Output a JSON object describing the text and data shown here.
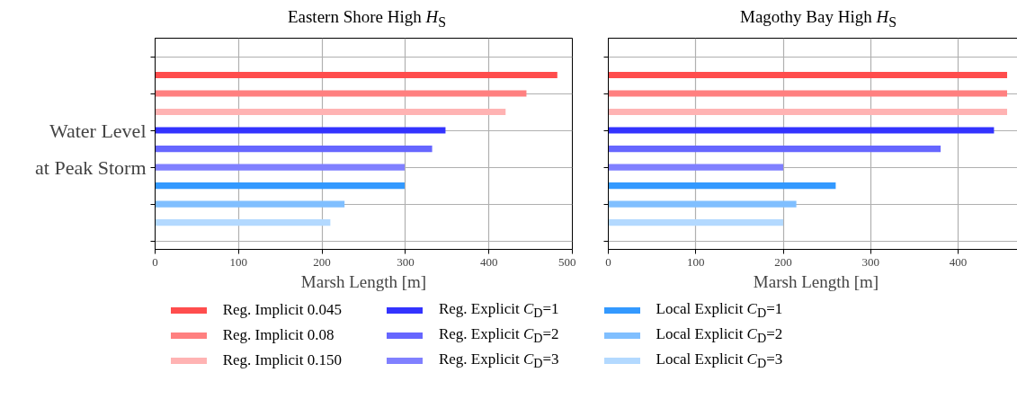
{
  "chart_data": [
    {
      "type": "bar",
      "orientation": "horizontal",
      "title": "Eastern Shore High H$_{S}$",
      "xlabel": "Marsh Length [m]",
      "xlim": [
        0,
        500
      ],
      "xticks": [
        0,
        100,
        200,
        300,
        400,
        500
      ],
      "categories": [
        null,
        null,
        null,
        null,
        "Water Level",
        null,
        "at Peak Storm",
        null,
        null,
        null,
        null
      ],
      "grid": true,
      "legend": "bottom",
      "series": [
        {
          "name": "Reg. Implicit 0.045",
          "color": "#ff4d4d",
          "values": [
            null,
            482,
            null,
            null,
            null,
            null,
            null,
            null,
            null,
            null,
            null
          ]
        },
        {
          "name": "Reg. Implicit 0.08",
          "color": "#ff8080",
          "values": [
            null,
            null,
            445,
            null,
            null,
            null,
            null,
            null,
            null,
            null,
            null
          ]
        },
        {
          "name": "Reg. Implicit 0.150",
          "color": "#ffb3b3",
          "values": [
            null,
            null,
            null,
            420,
            null,
            null,
            null,
            null,
            null,
            null,
            null
          ]
        },
        {
          "name": "Reg. Explicit C$_{D}$=1",
          "color": "#3333ff",
          "values": [
            null,
            null,
            null,
            null,
            348,
            null,
            null,
            null,
            null,
            null,
            null
          ]
        },
        {
          "name": "Reg. Explicit C$_{D}$=2",
          "color": "#6666ff",
          "values": [
            null,
            null,
            null,
            null,
            null,
            332,
            null,
            null,
            null,
            null,
            null
          ]
        },
        {
          "name": "Reg. Explicit C$_{D}$=3",
          "color": "#8080ff",
          "values": [
            null,
            null,
            null,
            null,
            null,
            null,
            299,
            null,
            null,
            null,
            null
          ]
        },
        {
          "name": "Local Explicit C$_{D}$=1",
          "color": "#3399ff",
          "values": [
            null,
            null,
            null,
            null,
            null,
            null,
            null,
            299,
            null,
            null,
            null
          ]
        },
        {
          "name": "Local Explicit C$_{D}$=2",
          "color": "#80bfff",
          "values": [
            null,
            null,
            null,
            null,
            null,
            null,
            null,
            null,
            227,
            null,
            null
          ]
        },
        {
          "name": "Local Explicit C$_{D}$=3",
          "color": "#b3d9ff",
          "values": [
            null,
            null,
            null,
            null,
            null,
            null,
            null,
            null,
            null,
            210,
            null
          ]
        }
      ]
    },
    {
      "type": "bar",
      "orientation": "horizontal",
      "title": "Magothy Bay High H$_{S}$",
      "xlabel": "Marsh Length [m]",
      "xlim": [
        0,
        475
      ],
      "xticks": [
        0,
        100,
        200,
        300,
        400
      ],
      "categories": [
        null,
        null,
        null,
        null,
        null,
        null,
        null,
        null,
        null,
        null,
        null
      ],
      "grid": true,
      "series": [
        {
          "color": "#ff4d4d",
          "values": [
            null,
            456,
            null,
            null,
            null,
            null,
            null,
            null,
            null,
            null,
            null
          ]
        },
        {
          "color": "#ff8080",
          "values": [
            null,
            null,
            456,
            null,
            null,
            null,
            null,
            null,
            null,
            null,
            null
          ]
        },
        {
          "color": "#ffb3b3",
          "values": [
            null,
            null,
            null,
            456,
            null,
            null,
            null,
            null,
            null,
            null,
            null
          ]
        },
        {
          "color": "#3333ff",
          "values": [
            null,
            null,
            null,
            null,
            441,
            null,
            null,
            null,
            null,
            null,
            null
          ]
        },
        {
          "color": "#6666ff",
          "values": [
            null,
            null,
            null,
            null,
            null,
            380,
            null,
            null,
            null,
            null,
            null
          ]
        },
        {
          "color": "#8080ff",
          "values": [
            null,
            null,
            null,
            null,
            null,
            null,
            200,
            null,
            null,
            null,
            null
          ]
        },
        {
          "color": "#3399ff",
          "values": [
            null,
            null,
            null,
            null,
            null,
            null,
            null,
            260,
            null,
            null,
            null
          ]
        },
        {
          "color": "#80bfff",
          "values": [
            null,
            null,
            null,
            null,
            null,
            null,
            null,
            null,
            215,
            null,
            null
          ]
        },
        {
          "color": "#b3d9ff",
          "values": [
            null,
            null,
            null,
            null,
            null,
            null,
            null,
            null,
            null,
            200,
            null
          ]
        }
      ]
    }
  ]
}
